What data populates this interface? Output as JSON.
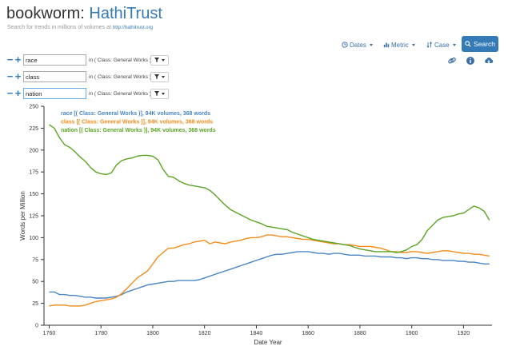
{
  "header": {
    "app_name": "bookworm:",
    "brand": "HathiTrust",
    "subtitle": "Search for trends in millions of volumes at",
    "subtitle_url": "http://hathitrust.org"
  },
  "toolbar": {
    "dates_label": "Dates",
    "metric_label": "Metric",
    "case_label": "Case",
    "search_label": "Search"
  },
  "queries": [
    {
      "term": "race",
      "in_label": "in",
      "class_label": "( Class: General Works )"
    },
    {
      "term": "class",
      "in_label": "in",
      "class_label": "( Class: General Works )"
    },
    {
      "term": "nation",
      "in_label": "in",
      "class_label": "( Class: General Works )"
    }
  ],
  "colors": {
    "race": "#4a86c5",
    "class": "#f28c1c",
    "nation": "#5aa524",
    "accent": "#337ab7"
  },
  "chart_data": {
    "type": "line",
    "xlabel": "Date Year",
    "ylabel": "Words per Million",
    "xlim": [
      1758,
      1931
    ],
    "ylim": [
      0,
      250
    ],
    "xticks": [
      1760,
      1780,
      1800,
      1820,
      1840,
      1860,
      1880,
      1900,
      1920
    ],
    "yticks": [
      0,
      25,
      50,
      75,
      100,
      125,
      150,
      175,
      200,
      225,
      250
    ],
    "legend": [
      "race [( Class: General Works )], 94K volumes, 368 words",
      "class [( Class: General Works )], 94K volumes, 368 words",
      "nation [( Class: General Works )], 94K volumes, 368 words"
    ],
    "x": [
      1760,
      1762,
      1764,
      1766,
      1768,
      1770,
      1772,
      1774,
      1776,
      1778,
      1780,
      1782,
      1784,
      1786,
      1788,
      1790,
      1792,
      1794,
      1796,
      1798,
      1800,
      1802,
      1804,
      1806,
      1808,
      1810,
      1812,
      1814,
      1816,
      1818,
      1820,
      1822,
      1824,
      1826,
      1828,
      1830,
      1832,
      1834,
      1836,
      1838,
      1840,
      1842,
      1844,
      1846,
      1848,
      1850,
      1852,
      1854,
      1856,
      1858,
      1860,
      1862,
      1864,
      1866,
      1868,
      1870,
      1872,
      1874,
      1876,
      1878,
      1880,
      1882,
      1884,
      1886,
      1888,
      1890,
      1892,
      1894,
      1896,
      1898,
      1900,
      1902,
      1904,
      1906,
      1908,
      1910,
      1912,
      1914,
      1916,
      1918,
      1920,
      1922,
      1924,
      1926,
      1928,
      1930
    ],
    "series": [
      {
        "name": "race",
        "values": [
          38,
          38,
          35,
          35,
          34,
          34,
          33,
          32,
          32,
          31,
          31,
          31,
          32,
          33,
          35,
          38,
          40,
          42,
          44,
          46,
          47,
          48,
          49,
          50,
          50,
          51,
          51,
          51,
          51,
          52,
          54,
          56,
          58,
          60,
          62,
          64,
          66,
          68,
          70,
          72,
          74,
          76,
          78,
          80,
          81,
          81,
          82,
          83,
          84,
          84,
          84,
          83,
          82,
          82,
          81,
          82,
          82,
          81,
          80,
          80,
          80,
          79,
          79,
          79,
          78,
          78,
          78,
          77,
          77,
          76,
          77,
          77,
          76,
          76,
          75,
          75,
          74,
          74,
          74,
          73,
          73,
          72,
          72,
          71,
          70,
          70
        ]
      },
      {
        "name": "class",
        "values": [
          22,
          23,
          23,
          23,
          22,
          22,
          22,
          23,
          25,
          27,
          28,
          29,
          30,
          32,
          36,
          42,
          48,
          54,
          58,
          62,
          70,
          78,
          83,
          88,
          88,
          90,
          92,
          93,
          95,
          96,
          97,
          93,
          95,
          94,
          93,
          95,
          96,
          97,
          99,
          100,
          100,
          101,
          103,
          103,
          102,
          101,
          101,
          100,
          99,
          98,
          98,
          97,
          96,
          95,
          94,
          93,
          93,
          92,
          92,
          91,
          90,
          90,
          90,
          89,
          88,
          86,
          84,
          84,
          83,
          83,
          84,
          84,
          83,
          82,
          83,
          84,
          85,
          85,
          84,
          83,
          82,
          82,
          81,
          81,
          80,
          79
        ]
      },
      {
        "name": "nation",
        "values": [
          229,
          225,
          214,
          206,
          203,
          198,
          192,
          187,
          180,
          175,
          173,
          172,
          174,
          183,
          188,
          190,
          191,
          193,
          194,
          194,
          193,
          189,
          178,
          170,
          169,
          165,
          162,
          160,
          159,
          158,
          157,
          154,
          149,
          143,
          137,
          132,
          129,
          126,
          123,
          120,
          118,
          116,
          113,
          112,
          111,
          110,
          109,
          106,
          104,
          102,
          100,
          98,
          97,
          96,
          95,
          94,
          93,
          92,
          91,
          89,
          87,
          86,
          85,
          84,
          84,
          84,
          84,
          83,
          84,
          86,
          90,
          92,
          98,
          108,
          114,
          120,
          123,
          124,
          125,
          127,
          128,
          132,
          136,
          134,
          130,
          120
        ]
      }
    ]
  }
}
